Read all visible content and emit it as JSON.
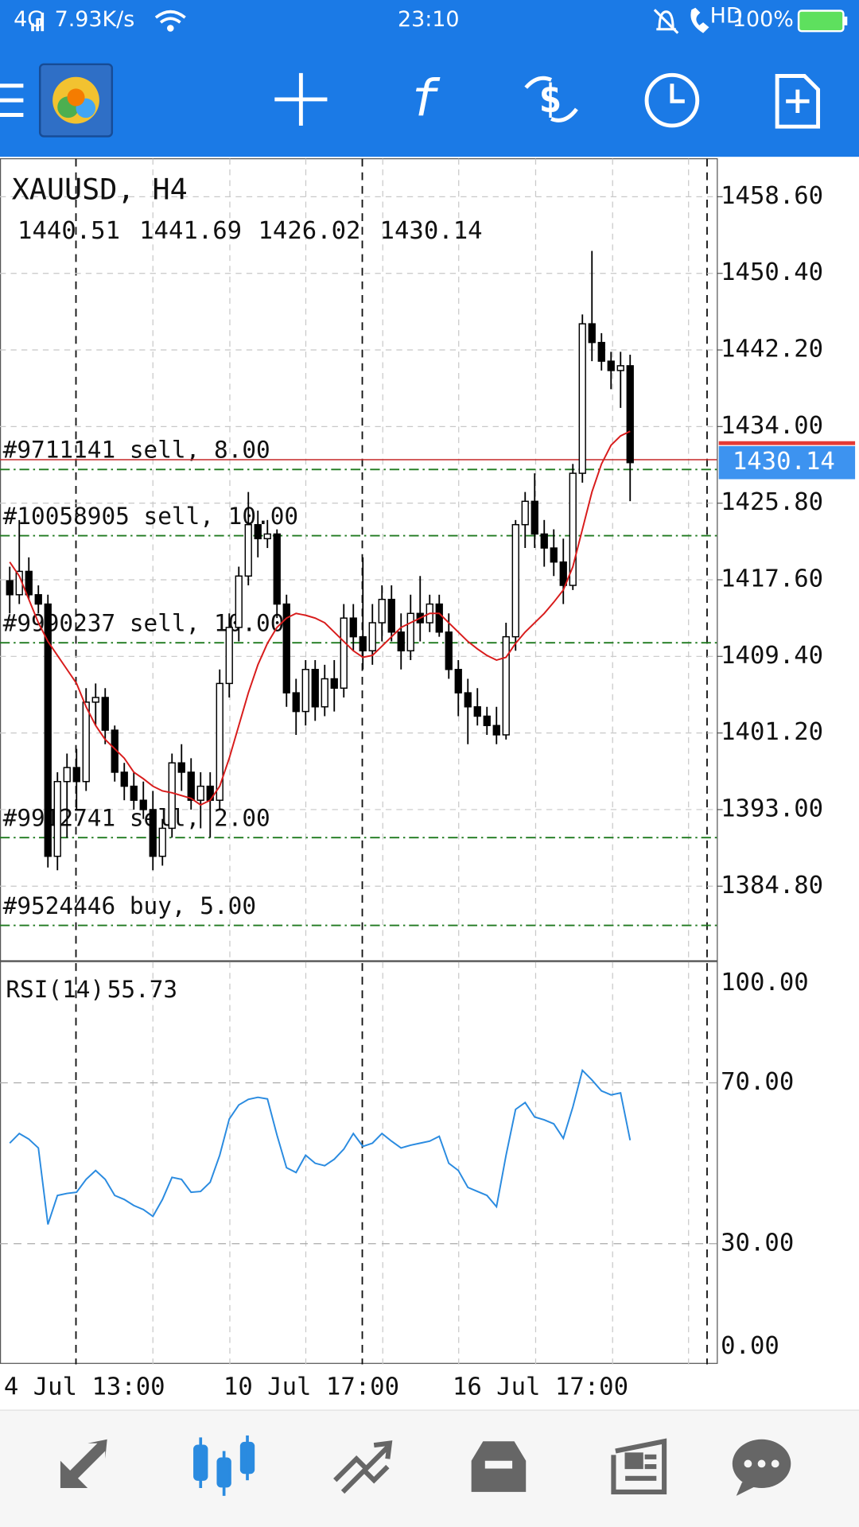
{
  "status_bar": {
    "network": "4G",
    "speed": "7.93K/s",
    "time": "23:10",
    "hd": "HD",
    "battery": "100%"
  },
  "chart_data": {
    "type": "candlestick",
    "title": "XAUUSD, H4",
    "categories": [
      "4 Jul 13:00",
      null,
      null,
      null,
      null,
      null,
      null,
      null,
      null,
      null,
      null,
      null,
      null,
      null,
      null,
      null,
      null,
      null,
      null,
      null,
      null,
      null,
      null,
      "10 Jul 17:00",
      null,
      null,
      null,
      null,
      null,
      null,
      null,
      null,
      null,
      null,
      null,
      null,
      null,
      null,
      null,
      null,
      null,
      null,
      null,
      null,
      null,
      null,
      null,
      "16 Jul 17:00",
      null,
      null,
      null,
      null,
      null,
      null,
      null,
      null,
      null,
      null,
      null,
      null,
      null,
      null,
      null,
      null,
      null,
      null
    ],
    "open": [
      1417.5,
      1416,
      1418.5,
      1416,
      1415,
      1388,
      1396,
      1397.5,
      1396,
      1404.5,
      1405,
      1401.5,
      1397,
      1395.5,
      1394,
      1393,
      1388,
      1391,
      1398,
      1397,
      1394,
      1395.5,
      1394,
      1406.5,
      1412.5,
      1418,
      1423.5,
      1422,
      1422.5,
      1415,
      1405.5,
      1403.5,
      1408,
      1404,
      1407,
      1406,
      1413.5,
      1411.5,
      1410,
      1413,
      1415.5,
      1412,
      1410,
      1414,
      1413,
      1415,
      1412,
      1408,
      1405.5,
      1404,
      1403,
      1402,
      1401,
      1411.5,
      1423.5,
      1426,
      1422.5,
      1421,
      1419.5,
      1417,
      1429,
      1445,
      1443,
      1441,
      1440,
      1440.51
    ],
    "high": [
      1419,
      1424,
      1420,
      1417,
      1416,
      1397,
      1399,
      1399.5,
      1406,
      1406.5,
      1406,
      1402,
      1398,
      1397,
      1396,
      1395,
      1392,
      1399,
      1400,
      1398.5,
      1397,
      1397,
      1408,
      1414,
      1419,
      1427,
      1425,
      1424,
      1423,
      1416,
      1407,
      1409,
      1409,
      1408.5,
      1409,
      1415,
      1415,
      1420,
      1415,
      1417,
      1417,
      1414,
      1416,
      1418,
      1416,
      1416,
      1414,
      1409,
      1407,
      1406,
      1404,
      1404,
      1413,
      1424,
      1427,
      1429,
      1424,
      1423,
      1422,
      1430,
      1446,
      1452.8,
      1444,
      1442,
      1442,
      1441.69
    ],
    "low": [
      1414,
      1415,
      1415.5,
      1414,
      1386.8,
      1386.5,
      1390,
      1393,
      1395,
      1402,
      1400,
      1396,
      1394,
      1393,
      1392,
      1386.5,
      1387,
      1390,
      1395,
      1393,
      1391,
      1390,
      1393,
      1405,
      1411,
      1417,
      1420,
      1421,
      1413.5,
      1404,
      1401,
      1402,
      1402.5,
      1403,
      1403.5,
      1405,
      1410,
      1408,
      1408.5,
      1411,
      1411,
      1408,
      1409,
      1411,
      1412,
      1411.5,
      1407,
      1403,
      1400,
      1402,
      1401,
      1400,
      1400.5,
      1410,
      1421,
      1421,
      1419,
      1418,
      1415,
      1416.5,
      1428,
      1441,
      1440,
      1438,
      1436,
      1426.02
    ],
    "close": [
      1416,
      1418.5,
      1416,
      1415,
      1388,
      1396,
      1397.5,
      1396,
      1404.5,
      1405,
      1401.5,
      1397,
      1395.5,
      1394,
      1393,
      1388,
      1391,
      1398,
      1397,
      1394,
      1395.5,
      1394,
      1406.5,
      1412.5,
      1418,
      1423.5,
      1422,
      1422.5,
      1415,
      1405.5,
      1403.5,
      1408,
      1404,
      1407,
      1406,
      1413.5,
      1411.5,
      1410,
      1413,
      1415.5,
      1412,
      1410,
      1414,
      1413,
      1415,
      1412,
      1408,
      1405.5,
      1404,
      1403,
      1402,
      1401,
      1411.5,
      1423.5,
      1426,
      1422.5,
      1421,
      1419.5,
      1417,
      1429,
      1445,
      1443,
      1441,
      1440,
      1440.51,
      1430.14
    ],
    "ma_values": [
      1419.5,
      1418,
      1415.5,
      1413,
      1411,
      1409.5,
      1408,
      1406.5,
      1404,
      1402,
      1400.5,
      1399.5,
      1398.5,
      1397,
      1396.3,
      1395.5,
      1395,
      1394.8,
      1394.5,
      1394.2,
      1393.5,
      1394,
      1395.5,
      1398.5,
      1402,
      1405.5,
      1408.5,
      1410.8,
      1412.5,
      1413.5,
      1414,
      1413.8,
      1413.5,
      1413,
      1412,
      1411,
      1410,
      1409.3,
      1409.5,
      1410.5,
      1411.5,
      1412.5,
      1413,
      1413.5,
      1414,
      1414,
      1413,
      1412,
      1411,
      1410.2,
      1409.5,
      1409,
      1409.3,
      1410.8,
      1412,
      1413,
      1414,
      1415.2,
      1416.5,
      1419,
      1423,
      1427,
      1430,
      1432,
      1433,
      1433.5
    ],
    "ma_color": "#d81b1b",
    "ylim": [
      1376.98,
      1462.67
    ],
    "yticks": [
      {
        "value": 1458.6,
        "label": "1458.60"
      },
      {
        "value": 1450.4,
        "label": "1450.40"
      },
      {
        "value": 1442.2,
        "label": "1442.20"
      },
      {
        "value": 1434,
        "label": "1434.00"
      },
      {
        "value": 1425.8,
        "label": "1425.80"
      },
      {
        "value": 1417.6,
        "label": "1417.60"
      },
      {
        "value": 1409.4,
        "label": "1409.40"
      },
      {
        "value": 1401.2,
        "label": "1401.20"
      },
      {
        "value": 1393,
        "label": "1393.00"
      },
      {
        "value": 1384.8,
        "label": "1384.80"
      }
    ],
    "grid": true,
    "orders": [
      {
        "label": "#9711141 sell, 8.00",
        "price": 1429.41
      },
      {
        "label": "#10058905 sell, 10.00",
        "price": 1422.32
      },
      {
        "label": "#9990237 sell, 10.00",
        "price": 1410.86
      },
      {
        "label": "#9912741 sell, 2.00",
        "price": 1390.0
      },
      {
        "label": "#9524446 buy, 5.00",
        "price": 1380.6
      }
    ],
    "order_color": "#1f7a1f",
    "rsi": {
      "name": "RSI(14)",
      "color": "#2a8be0",
      "values": [
        55,
        57.4,
        56,
        53.8,
        34.8,
        42,
        42.5,
        42.8,
        46,
        48.2,
        46,
        42,
        41,
        39.5,
        38.5,
        36.8,
        41,
        46.5,
        46,
        42.8,
        43,
        45.3,
        52,
        61,
        64.5,
        65.9,
        66.4,
        66,
        57,
        48.9,
        47.7,
        52,
        50,
        49.4,
        51,
        53.5,
        57.4,
        54.2,
        55,
        57.4,
        55.5,
        53.8,
        54.5,
        55,
        55.5,
        56.7,
        50,
        48.2,
        44,
        43,
        42,
        39.2,
        52,
        63.4,
        65.1,
        61.5,
        60.8,
        59.8,
        56.2,
        64,
        73.1,
        70.7,
        68,
        67,
        67.5,
        55.73
      ],
      "ylim": [
        0,
        100
      ],
      "yticks": [
        {
          "value": 100,
          "label": "100.00"
        },
        {
          "value": 70,
          "label": "70.00"
        },
        {
          "value": 30,
          "label": "30.00"
        },
        {
          "value": 0,
          "label": "0.00"
        }
      ]
    }
  }
}
